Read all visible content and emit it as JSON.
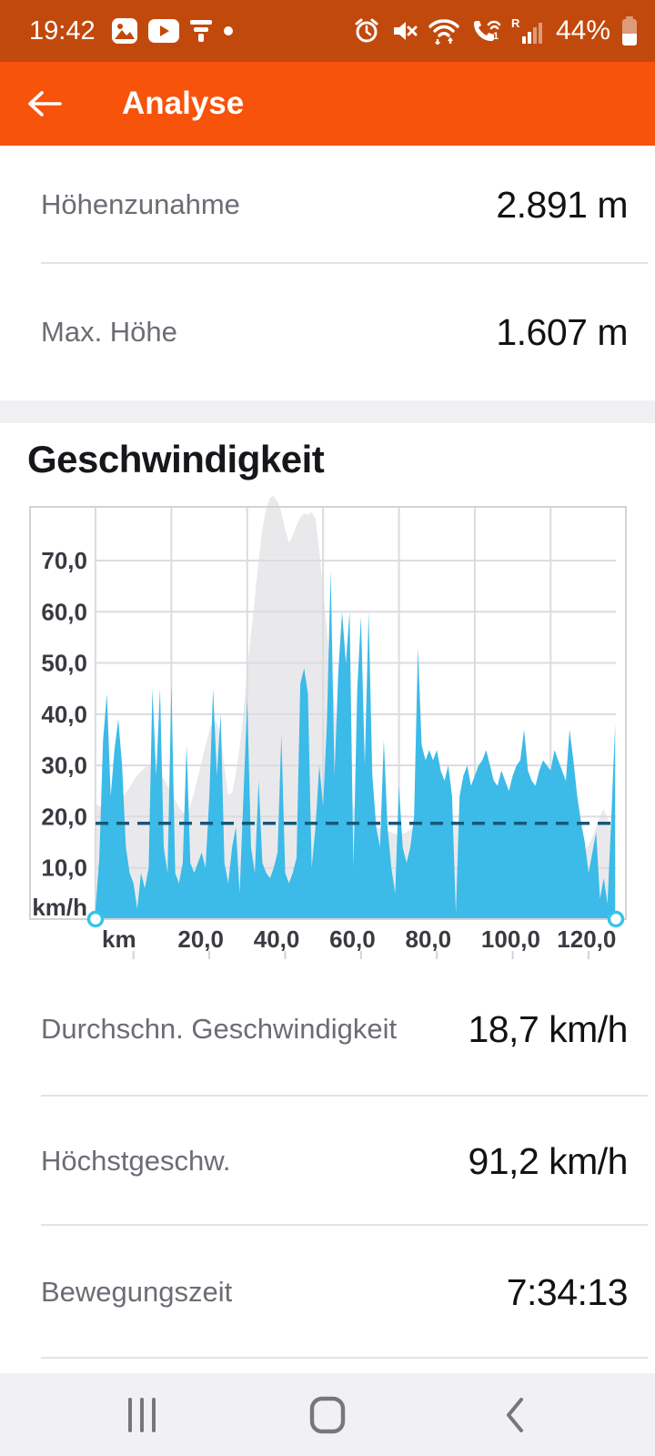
{
  "status_bar": {
    "time": "19:42",
    "battery_percent": "44%",
    "left_icons": [
      "gallery-icon",
      "youtube-icon",
      "filter-icon",
      "notification-dot"
    ],
    "right_icons": [
      "alarm-icon",
      "mute-icon",
      "wifi-icon",
      "wifi-calling-icon",
      "roaming-signal-icon",
      "battery-icon"
    ]
  },
  "app_bar": {
    "title": "Analyse",
    "back_icon": "back-arrow-icon"
  },
  "stats_top": [
    {
      "label": "Höhenzunahme",
      "value": "2.891 m"
    },
    {
      "label": "Max. Höhe",
      "value": "1.607 m"
    }
  ],
  "section": {
    "title": "Geschwindigkeit"
  },
  "stats_bottom": [
    {
      "label": "Durchschn. Geschwindigkeit",
      "value": "18,7 km/h"
    },
    {
      "label": "Höchstgeschw.",
      "value": "91,2 km/h"
    },
    {
      "label": "Bewegungszeit",
      "value": "7:34:13"
    }
  ],
  "nav_bar": {
    "items": [
      "recents",
      "home",
      "back"
    ]
  },
  "colors": {
    "status_bar_bg": "#C2490C",
    "app_bar_bg": "#F7530B",
    "speed_blue": "#3CBAE8",
    "elevation_gray": "#E9E9EC",
    "avg_line": "#15587A",
    "handle_ring": "#35C4EE",
    "grid": "#DCDCE0",
    "chart_border": "#D2D2D8",
    "axis_text": "#3A3A42",
    "label_gray": "#6C6C75",
    "value_dark": "#121215",
    "divider": "#E3E3E7",
    "section_band": "#F0F0F3",
    "nav_bg": "#F1F1F4",
    "nav_icon": "#76767C"
  },
  "chart_data": {
    "type": "area",
    "title": "Geschwindigkeit",
    "x_unit_label": "km",
    "y_unit_label": "km/h",
    "x_ticks": [
      "km",
      "20,0",
      "40,0",
      "60,0",
      "80,0",
      "100,0",
      "120,0"
    ],
    "x_tick_values_km": [
      0,
      20,
      40,
      60,
      80,
      100,
      120
    ],
    "y_ticks": [
      "70,0",
      "60,0",
      "50,0",
      "40,0",
      "30,0",
      "20,0",
      "10,0"
    ],
    "y_tick_values": [
      70,
      60,
      50,
      40,
      30,
      20,
      10
    ],
    "xlim": [
      0,
      137.2
    ],
    "ylim": [
      0,
      80.3
    ],
    "grid": true,
    "average_speed_kmh": 18.7,
    "max_speed_kmh": 91.2,
    "elevation_display_max_m": 1607,
    "x_step_km": 1,
    "series": [
      {
        "name": "elevation_background",
        "unit": "m",
        "values": [
          440,
          430,
          425,
          420,
          420,
          430,
          440,
          460,
          480,
          500,
          525,
          545,
          560,
          575,
          583,
          570,
          555,
          545,
          535,
          505,
          480,
          450,
          425,
          405,
          400,
          430,
          480,
          540,
          600,
          660,
          715,
          754,
          745,
          700,
          580,
          470,
          480,
          555,
          650,
          780,
          950,
          1080,
          1220,
          1360,
          1480,
          1560,
          1600,
          1607,
          1585,
          1545,
          1480,
          1430,
          1455,
          1495,
          1525,
          1540,
          1535,
          1545,
          1520,
          1400,
          1250,
          1100,
          950,
          820,
          700,
          600,
          520,
          470,
          430,
          400,
          385,
          370,
          360,
          355,
          350,
          345,
          340,
          335,
          330,
          325,
          320,
          325,
          330,
          340,
          350,
          380,
          420,
          440,
          445,
          435,
          425,
          410,
          400,
          390,
          380,
          365,
          350,
          335,
          320,
          310,
          300,
          295,
          290,
          285,
          282,
          280,
          276,
          272,
          268,
          264,
          260,
          258,
          256,
          254,
          252,
          250,
          248,
          246,
          244,
          242,
          240,
          238,
          236,
          234,
          232,
          230,
          232,
          236,
          240,
          258,
          280,
          310,
          350,
          390,
          420,
          380,
          330,
          300
        ]
      },
      {
        "name": "speed",
        "unit": "km/h",
        "values": [
          2,
          12,
          35,
          44,
          24,
          33,
          39,
          30,
          14,
          9,
          7,
          2,
          9,
          6,
          10,
          45,
          28,
          45,
          14,
          9,
          46,
          9,
          7,
          11,
          34,
          11,
          9,
          11,
          13,
          10,
          24,
          45,
          28,
          40,
          11,
          7,
          14,
          18,
          5,
          24,
          43,
          14,
          9,
          27,
          11,
          9,
          8,
          10,
          13,
          36,
          9,
          7,
          9,
          12,
          46,
          49,
          44,
          10,
          18,
          30,
          22,
          38,
          68,
          28,
          48,
          60,
          50,
          60,
          10,
          45,
          59,
          30,
          60,
          28,
          18,
          14,
          35,
          18,
          10,
          5,
          26,
          14,
          11,
          14,
          20,
          53,
          34,
          31,
          33,
          31,
          33,
          29,
          27,
          30,
          24,
          1,
          24,
          28,
          30,
          26,
          28,
          30,
          31,
          33,
          30,
          27,
          26,
          29,
          27,
          25,
          28,
          30,
          31,
          37,
          29,
          27,
          26,
          29,
          31,
          30,
          29,
          33,
          31,
          29,
          27,
          37,
          31,
          24,
          19,
          15,
          9,
          13,
          17,
          4,
          8,
          3,
          20,
          38
        ]
      }
    ]
  }
}
